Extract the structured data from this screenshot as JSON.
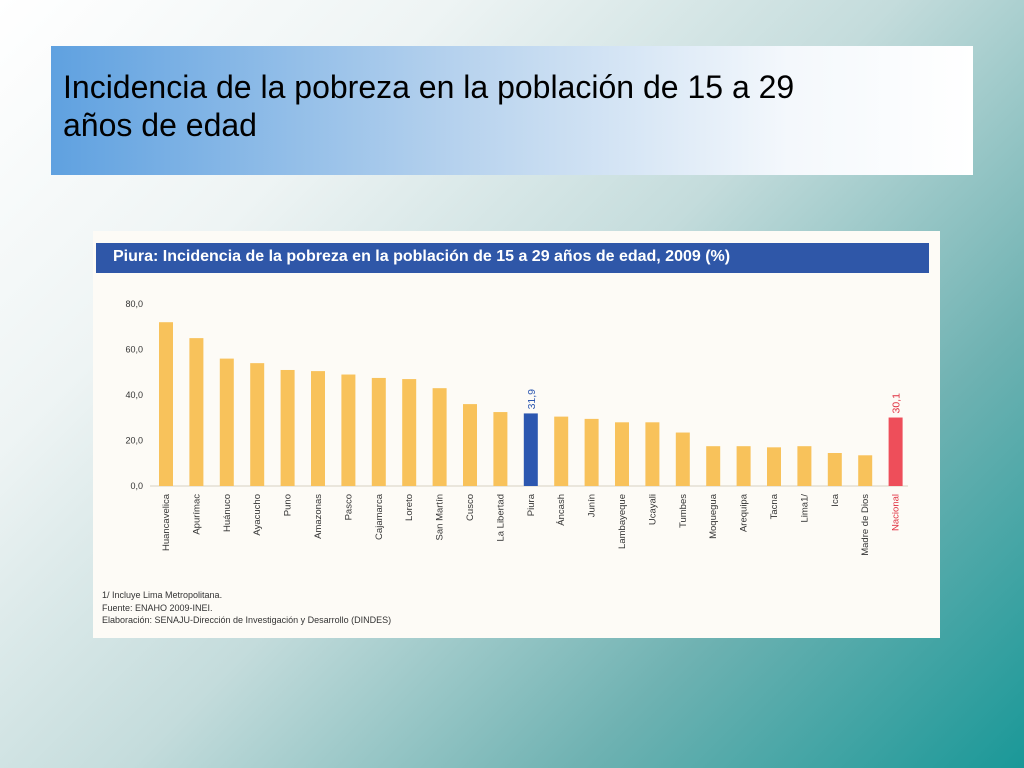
{
  "slide": {
    "title_line1": "Incidencia de la pobreza en la población de 15 a 29",
    "title_line2": "años de edad"
  },
  "chart_data": {
    "type": "bar",
    "title": "Piura: Incidencia de la pobreza en la población de 15 a 29 años de edad, 2009 (%)",
    "xlabel": "",
    "ylabel": "",
    "ylim": [
      0,
      80
    ],
    "yticks": [
      "0,0",
      "20,0",
      "40,0",
      "60,0",
      "80,0"
    ],
    "grid": false,
    "categories": [
      "Huancavelica",
      "Apurímac",
      "Huánuco",
      "Ayacucho",
      "Puno",
      "Amazonas",
      "Pasco",
      "Cajamarca",
      "Loreto",
      "San Martín",
      "Cusco",
      "La Libertad",
      "Piura",
      "Áncash",
      "Junín",
      "Lambayeque",
      "Ucayali",
      "Tumbes",
      "Moquegua",
      "Arequipa",
      "Tacna",
      "Lima1/",
      "Ica",
      "Madre de Dios",
      "Nacional"
    ],
    "values": [
      72,
      65,
      56,
      54,
      51,
      50.5,
      49,
      47.5,
      47,
      43,
      36,
      32.5,
      31.9,
      30.5,
      29.5,
      28,
      28,
      23.5,
      17.5,
      17.5,
      17,
      17.5,
      14.5,
      13.5,
      30.1
    ],
    "bar_colors": [
      "#f8c25b",
      "#f8c25b",
      "#f8c25b",
      "#f8c25b",
      "#f8c25b",
      "#f8c25b",
      "#f8c25b",
      "#f8c25b",
      "#f8c25b",
      "#f8c25b",
      "#f8c25b",
      "#f8c25b",
      "#2c57b0",
      "#f8c25b",
      "#f8c25b",
      "#f8c25b",
      "#f8c25b",
      "#f8c25b",
      "#f8c25b",
      "#f8c25b",
      "#f8c25b",
      "#f8c25b",
      "#f8c25b",
      "#f8c25b",
      "#ee4e5a"
    ],
    "data_labels": [
      {
        "category": "Piura",
        "text": "31,9",
        "color": "#2c57b0"
      },
      {
        "category": "Nacional",
        "text": "30,1",
        "color": "#e03040"
      }
    ],
    "highlight_label_color": "#e03040",
    "notes": [
      "1/ Incluye Lima Metropolitana.",
      "Fuente: ENAHO 2009-INEI.",
      "Elaboración: SENAJU-Dirección de Investigación y Desarrollo (DINDES)"
    ]
  }
}
